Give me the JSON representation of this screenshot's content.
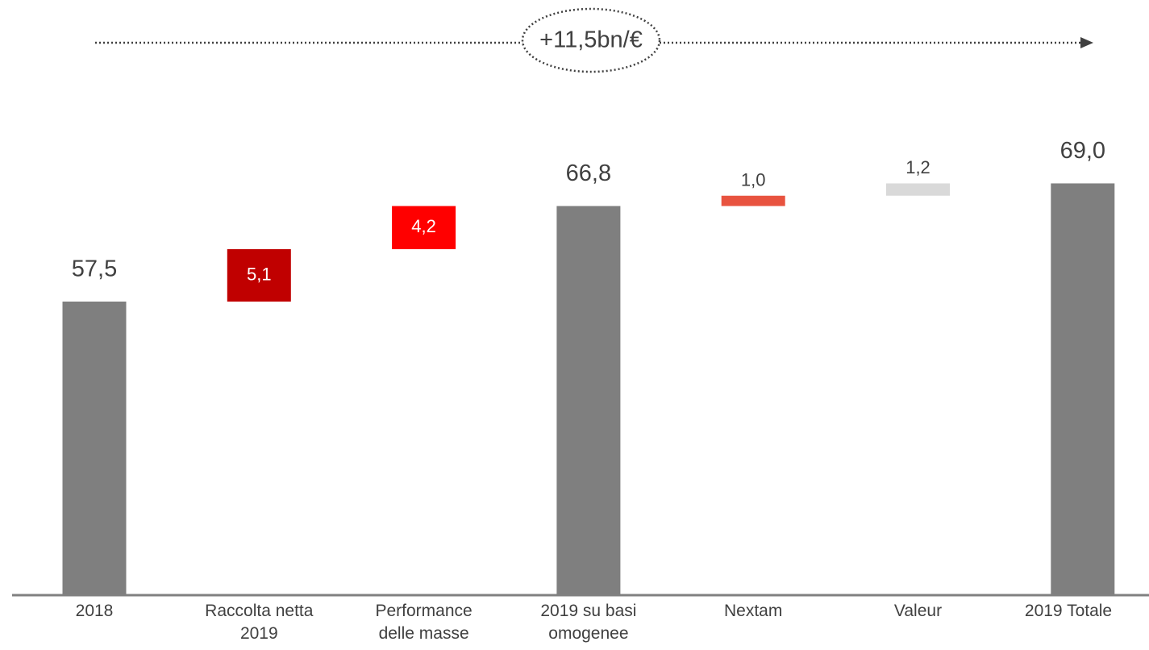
{
  "chart_data": {
    "type": "waterfall",
    "annotation": "+11,5bn/€",
    "categories": [
      "2018",
      "Raccolta netta\n2019",
      "Performance\ndelle masse",
      "2019 su basi\nomogenee",
      "Nextam",
      "Valeur",
      "2019 Totale"
    ],
    "values": [
      57.5,
      5.1,
      4.2,
      66.8,
      1.0,
      1.2,
      69.0
    ],
    "value_labels": [
      "57,5",
      "5,1",
      "4,2",
      "66,8",
      "1,0",
      "1,2",
      "69,0"
    ],
    "totals": [
      true,
      false,
      false,
      true,
      false,
      false,
      true
    ],
    "colors": [
      "#7f7f7f",
      "#c00000",
      "#ff0000",
      "#7f7f7f",
      "#e8533f",
      "#d9d9d9",
      "#7f7f7f"
    ],
    "ylim": [
      29,
      75
    ]
  }
}
